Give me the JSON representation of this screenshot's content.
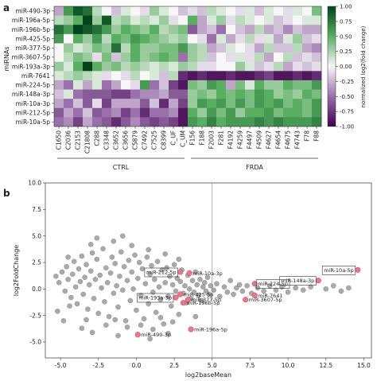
{
  "chart_data": [
    {
      "type": "heatmap",
      "panel_label": "a",
      "ylabel": "miRNAs",
      "rows": [
        "miR-490-3p",
        "miR-196a-5p",
        "miR-196b-5p",
        "miR-425-5p",
        "miR-377-5p",
        "miR-3607-5p",
        "miR-193a-3p",
        "miR-7641",
        "miR-224-5p",
        "miR-148a-3p",
        "miR-10a-3p",
        "miR-212-5p",
        "miR-10a-5p"
      ],
      "columns": [
        "C1650",
        "C2036",
        "C2153",
        "C21808",
        "C288",
        "C3348",
        "C3652",
        "C3656",
        "C5879",
        "C7492",
        "C7525",
        "C8399",
        "C_UF",
        "C_UM",
        "F156",
        "F188",
        "F2003",
        "F281",
        "F4192",
        "F4259",
        "F4497",
        "F4509",
        "F4627",
        "F4654",
        "F4675",
        "F4743",
        "F78",
        "F88"
      ],
      "groups": [
        {
          "label": "CTRL",
          "columns": [
            "C1650",
            "C2036",
            "C2153",
            "C21808",
            "C288",
            "C3348",
            "C3652",
            "C3656",
            "C5879",
            "C7492",
            "C7525",
            "C8399",
            "C_UF",
            "C_UM"
          ]
        },
        {
          "label": "FRDA",
          "columns": [
            "F156",
            "F188",
            "F2003",
            "F281",
            "F4192",
            "F4259",
            "F4497",
            "F4509",
            "F4627",
            "F4654",
            "F4675",
            "F4743",
            "F78",
            "F88"
          ]
        }
      ],
      "colorbar": {
        "label": "normalized log2(fold change)",
        "range": [
          -1.0,
          1.0
        ],
        "ticks": [
          "1.00",
          "0.75",
          "0.50",
          "0.25",
          "0.00",
          "-0.25",
          "-0.50",
          "-0.75",
          "-1.00"
        ],
        "colors": {
          "low": "#40004b",
          "mid": "#f7f7f7",
          "high": "#00441b"
        }
      },
      "values": [
        [
          -0.3,
          0.6,
          0.9,
          0.8,
          0.2,
          0.0,
          -0.2,
          0.1,
          0.0,
          -0.1,
          0.3,
          0.1,
          0.0,
          -0.2,
          -0.1,
          -0.2,
          0.2,
          0.1,
          0.0,
          -0.1,
          0.1,
          -0.2,
          0.1,
          0.0,
          -0.1,
          0.1,
          0.0,
          0.4
        ],
        [
          0.2,
          0.3,
          0.5,
          1.0,
          0.3,
          0.9,
          0.2,
          0.3,
          0.1,
          0.2,
          0.1,
          0.3,
          -0.1,
          0.0,
          0.5,
          -0.3,
          0.1,
          0.3,
          -0.1,
          0.2,
          0.1,
          0.0,
          0.1,
          -0.2,
          -0.1,
          0.0,
          0.1,
          0.1
        ],
        [
          0.8,
          0.6,
          1.0,
          0.9,
          0.8,
          0.6,
          0.3,
          0.5,
          0.4,
          0.3,
          0.5,
          0.2,
          0.3,
          0.4,
          -0.6,
          -0.3,
          -0.2,
          -0.5,
          0.0,
          -0.2,
          -0.3,
          0.2,
          -0.3,
          -0.2,
          -0.4,
          -0.2,
          -0.3,
          -0.3
        ],
        [
          0.6,
          0.0,
          0.5,
          0.3,
          0.6,
          0.2,
          0.5,
          0.4,
          0.6,
          0.5,
          0.4,
          0.3,
          0.2,
          0.3,
          0.0,
          -0.1,
          -0.5,
          0.1,
          -0.3,
          -0.1,
          0.2,
          -0.1,
          0.1,
          -0.3,
          0.1,
          0.3,
          -0.2,
          -0.1
        ],
        [
          0.0,
          0.3,
          0.1,
          0.2,
          0.4,
          0.3,
          0.8,
          0.2,
          0.5,
          0.3,
          0.3,
          0.4,
          0.4,
          0.6,
          0.3,
          0.2,
          -0.3,
          -0.2,
          0.1,
          0.0,
          -0.1,
          -0.3,
          0.2,
          -0.2,
          -0.2,
          0.2,
          -0.3,
          -0.4
        ],
        [
          0.0,
          0.2,
          0.4,
          0.3,
          -0.1,
          0.4,
          -0.2,
          0.3,
          0.5,
          0.3,
          0.4,
          0.5,
          0.4,
          -0.5,
          0.3,
          0.2,
          -0.2,
          0.0,
          -0.1,
          0.1,
          -0.1,
          0.2,
          -0.3,
          0.0,
          0.2,
          -0.2,
          -0.1,
          -0.2
        ],
        [
          0.3,
          0.1,
          0.5,
          1.0,
          0.5,
          0.3,
          0.4,
          0.2,
          0.3,
          0.2,
          0.1,
          0.2,
          0.1,
          0.3,
          0.2,
          -0.1,
          -0.1,
          0.0,
          0.0,
          0.3,
          0.1,
          -0.2,
          -0.1,
          0.2,
          -0.3,
          -0.1,
          -0.2,
          -0.1
        ],
        [
          0.1,
          0.2,
          0.3,
          0.2,
          0.1,
          -0.1,
          0.0,
          -0.1,
          0.2,
          0.0,
          0.1,
          -0.2,
          0.2,
          -0.8,
          -0.9,
          -0.8,
          -0.9,
          -0.9,
          -0.8,
          -0.9,
          -0.9,
          -0.8,
          -0.7,
          -0.9,
          -0.9,
          -0.8,
          -0.9,
          -0.8
        ],
        [
          -0.3,
          -0.5,
          0.1,
          -0.3,
          0.1,
          -0.5,
          -0.3,
          0.0,
          -0.1,
          0.6,
          -0.5,
          -0.2,
          -0.7,
          -0.9,
          0.4,
          0.3,
          0.6,
          0.5,
          -0.3,
          0.4,
          0.1,
          0.5,
          0.3,
          0.3,
          0.5,
          0.4,
          0.4,
          0.6
        ],
        [
          -0.2,
          0.1,
          -0.5,
          -0.6,
          -0.6,
          -0.6,
          -0.7,
          -0.7,
          -0.5,
          -0.4,
          -0.4,
          -0.3,
          -0.6,
          -0.6,
          0.3,
          0.4,
          0.3,
          0.5,
          0.4,
          0.5,
          0.4,
          0.6,
          0.5,
          0.3,
          0.4,
          0.3,
          0.5,
          0.4
        ],
        [
          -0.3,
          -0.5,
          -0.2,
          -0.6,
          -0.1,
          -0.7,
          -0.3,
          -0.3,
          -0.3,
          -0.6,
          -0.2,
          -0.8,
          -0.3,
          -0.7,
          0.3,
          0.6,
          0.5,
          0.6,
          0.4,
          0.6,
          0.4,
          0.6,
          0.5,
          0.6,
          0.4,
          0.5,
          0.4,
          0.6
        ],
        [
          -0.6,
          -0.3,
          -0.5,
          -0.2,
          -0.6,
          -0.5,
          -0.4,
          -0.7,
          -0.5,
          -0.8,
          -0.5,
          -0.5,
          -0.4,
          -0.9,
          0.5,
          0.3,
          0.6,
          0.4,
          0.6,
          0.3,
          0.5,
          0.5,
          0.6,
          0.4,
          0.5,
          0.5,
          0.4,
          0.6
        ],
        [
          -0.5,
          -0.4,
          -0.7,
          -0.3,
          -0.5,
          -0.6,
          -0.8,
          -0.6,
          -0.4,
          -0.6,
          -0.7,
          -0.6,
          -0.7,
          -0.9,
          0.6,
          0.5,
          0.7,
          0.5,
          0.6,
          0.6,
          0.6,
          0.7,
          0.6,
          0.7,
          0.6,
          0.6,
          0.6,
          0.7
        ]
      ]
    },
    {
      "type": "scatter",
      "panel_label": "b",
      "xlabel": "log2baseMean",
      "ylabel": "log2FoldChange",
      "xlim": [
        -6.0,
        15.5
      ],
      "ylim": [
        -6.5,
        10.0
      ],
      "xticks": [
        "-5.0",
        "-2.5",
        "0.0",
        "2.5",
        "5.0",
        "7.5",
        "10.0",
        "12.5",
        "15.0"
      ],
      "yticks": [
        "10.0",
        "7.5",
        "5.0",
        "2.5",
        "0.0",
        "-2.5",
        "-5.0"
      ],
      "vline_x": 5.0,
      "colors": {
        "points": "#8c8c8c",
        "highlight": "#e7788a"
      },
      "highlighted": [
        {
          "label": "miR-212-5p",
          "x": 2.9,
          "y": 1.6
        },
        {
          "label": "miR-10a-3p",
          "x": 3.5,
          "y": 1.5
        },
        {
          "label": "miR-425-5p",
          "x": 2.9,
          "y": -0.5
        },
        {
          "label": "miR-193a-3p",
          "x": 2.6,
          "y": -0.8
        },
        {
          "label": "miR-377-5p",
          "x": 3.4,
          "y": -1.0
        },
        {
          "label": "miR-196b-5p",
          "x": 3.1,
          "y": -1.3
        },
        {
          "label": "miR-196a-5p",
          "x": 3.6,
          "y": -3.8
        },
        {
          "label": "miR-490-3p",
          "x": 0.1,
          "y": -4.3
        },
        {
          "label": "miR-224-5p",
          "x": 7.8,
          "y": 0.5
        },
        {
          "label": "miR-7641",
          "x": 7.8,
          "y": -0.6
        },
        {
          "label": "miR-3607-5p",
          "x": 7.2,
          "y": -1.0
        },
        {
          "label": "miR-10a-5p",
          "x": 14.6,
          "y": 1.8
        },
        {
          "label": "miR-148a-3p",
          "x": 12.0,
          "y": 0.8
        }
      ],
      "points": [
        [
          -5.3,
          1.2
        ],
        [
          -5.1,
          0.6
        ],
        [
          -4.9,
          1.6
        ],
        [
          -4.7,
          -0.2
        ],
        [
          -4.6,
          2.1
        ],
        [
          -4.5,
          0.9
        ],
        [
          -4.3,
          -0.8
        ],
        [
          -4.2,
          1.4
        ],
        [
          -4.1,
          2.6
        ],
        [
          -4.0,
          0.2
        ],
        [
          -3.9,
          -1.4
        ],
        [
          -3.8,
          1.9
        ],
        [
          -3.7,
          0.7
        ],
        [
          -3.6,
          3.1
        ],
        [
          -3.5,
          -0.5
        ],
        [
          -3.4,
          1.1
        ],
        [
          -3.3,
          2.3
        ],
        [
          -3.2,
          -1.9
        ],
        [
          -3.1,
          0.4
        ],
        [
          -3.0,
          1.7
        ],
        [
          -2.9,
          3.4
        ],
        [
          -2.8,
          -0.9
        ],
        [
          -2.7,
          0.9
        ],
        [
          -2.6,
          2.8
        ],
        [
          -2.5,
          -2.3
        ],
        [
          -2.4,
          1.3
        ],
        [
          -2.3,
          0.1
        ],
        [
          -2.2,
          3.8
        ],
        [
          -2.1,
          -1.2
        ],
        [
          -2.0,
          2.0
        ],
        [
          -1.9,
          0.6
        ],
        [
          -1.8,
          -2.6
        ],
        [
          -1.7,
          1.5
        ],
        [
          -1.6,
          3.0
        ],
        [
          -1.5,
          -0.4
        ],
        [
          -1.4,
          2.4
        ],
        [
          -1.3,
          0.3
        ],
        [
          -1.2,
          -1.7
        ],
        [
          -1.1,
          1.2
        ],
        [
          -1.0,
          3.5
        ],
        [
          -0.9,
          -0.1
        ],
        [
          -0.8,
          2.1
        ],
        [
          -0.7,
          -3.0
        ],
        [
          -0.6,
          0.8
        ],
        [
          -0.5,
          2.7
        ],
        [
          -0.4,
          -1.1
        ],
        [
          -0.3,
          1.6
        ],
        [
          -0.2,
          0.0
        ],
        [
          -0.1,
          3.2
        ],
        [
          0.0,
          -2.0
        ],
        [
          0.1,
          1.0
        ],
        [
          0.2,
          2.5
        ],
        [
          0.3,
          -0.6
        ],
        [
          0.4,
          1.9
        ],
        [
          0.5,
          -2.8
        ],
        [
          0.6,
          0.5
        ],
        [
          0.7,
          3.0
        ],
        [
          0.8,
          -1.4
        ],
        [
          0.9,
          1.4
        ],
        [
          1.0,
          2.2
        ],
        [
          1.1,
          -0.3
        ],
        [
          1.2,
          0.9
        ],
        [
          1.3,
          -2.2
        ],
        [
          1.4,
          2.6
        ],
        [
          1.5,
          0.2
        ],
        [
          1.6,
          -1.0
        ],
        [
          1.7,
          1.8
        ],
        [
          1.8,
          -3.3
        ],
        [
          1.9,
          0.6
        ],
        [
          2.0,
          2.0
        ],
        [
          2.1,
          -0.7
        ],
        [
          2.2,
          1.2
        ],
        [
          2.3,
          -1.6
        ],
        [
          2.4,
          0.4
        ],
        [
          2.5,
          2.3
        ],
        [
          2.6,
          -0.2
        ],
        [
          2.7,
          1.0
        ],
        [
          2.8,
          -2.4
        ],
        [
          2.9,
          0.7
        ],
        [
          3.0,
          1.8
        ],
        [
          3.1,
          -0.4
        ],
        [
          3.2,
          0.3
        ],
        [
          3.3,
          -1.3
        ],
        [
          3.4,
          1.3
        ],
        [
          3.5,
          0.0
        ],
        [
          3.6,
          -0.9
        ],
        [
          3.7,
          0.8
        ],
        [
          3.8,
          -0.3
        ],
        [
          3.9,
          1.6
        ],
        [
          4.0,
          0.4
        ],
        [
          4.1,
          -0.6
        ],
        [
          4.2,
          0.9
        ],
        [
          4.3,
          -1.1
        ],
        [
          4.4,
          0.2
        ],
        [
          4.5,
          0.6
        ],
        [
          4.6,
          -0.2
        ],
        [
          4.7,
          1.1
        ],
        [
          4.8,
          -0.5
        ],
        [
          4.9,
          0.3
        ],
        [
          5.1,
          -0.1
        ],
        [
          5.3,
          0.5
        ],
        [
          5.5,
          -0.7
        ],
        [
          5.8,
          0.2
        ],
        [
          6.0,
          -0.3
        ],
        [
          6.2,
          0.8
        ],
        [
          6.4,
          -0.5
        ],
        [
          6.6,
          0.1
        ],
        [
          6.8,
          0.4
        ],
        [
          7.0,
          -0.2
        ],
        [
          7.3,
          0.3
        ],
        [
          7.6,
          -0.4
        ],
        [
          8.0,
          0.1
        ],
        [
          8.4,
          -0.2
        ],
        [
          8.8,
          0.3
        ],
        [
          9.2,
          -0.1
        ],
        [
          9.6,
          0.2
        ],
        [
          10.0,
          -0.3
        ],
        [
          10.5,
          0.1
        ],
        [
          11.0,
          -0.1
        ],
        [
          11.5,
          0.2
        ],
        [
          12.5,
          0.0
        ],
        [
          13.0,
          0.3
        ],
        [
          13.5,
          -0.2
        ],
        [
          14.0,
          0.1
        ],
        [
          -4.4,
          -1.6
        ],
        [
          -3.3,
          -2.9
        ],
        [
          -2.0,
          -3.4
        ],
        [
          -1.4,
          -2.9
        ],
        [
          -0.6,
          -3.6
        ],
        [
          0.3,
          -3.4
        ],
        [
          1.1,
          -3.8
        ],
        [
          1.6,
          -2.7
        ],
        [
          2.4,
          -3.1
        ],
        [
          3.9,
          -2.6
        ],
        [
          -4.8,
          -3.0
        ],
        [
          -2.9,
          -4.1
        ],
        [
          -1.2,
          -4.4
        ],
        [
          0.9,
          -4.7
        ],
        [
          2.1,
          -4.2
        ],
        [
          -3.6,
          -3.7
        ],
        [
          -5.2,
          -2.1
        ],
        [
          -4.5,
          3.0
        ],
        [
          -3.0,
          4.2
        ],
        [
          -1.5,
          4.5
        ],
        [
          -0.3,
          4.1
        ],
        [
          0.8,
          3.7
        ],
        [
          1.9,
          3.3
        ],
        [
          2.8,
          2.8
        ],
        [
          -2.6,
          4.8
        ],
        [
          -0.9,
          5.0
        ]
      ]
    }
  ]
}
